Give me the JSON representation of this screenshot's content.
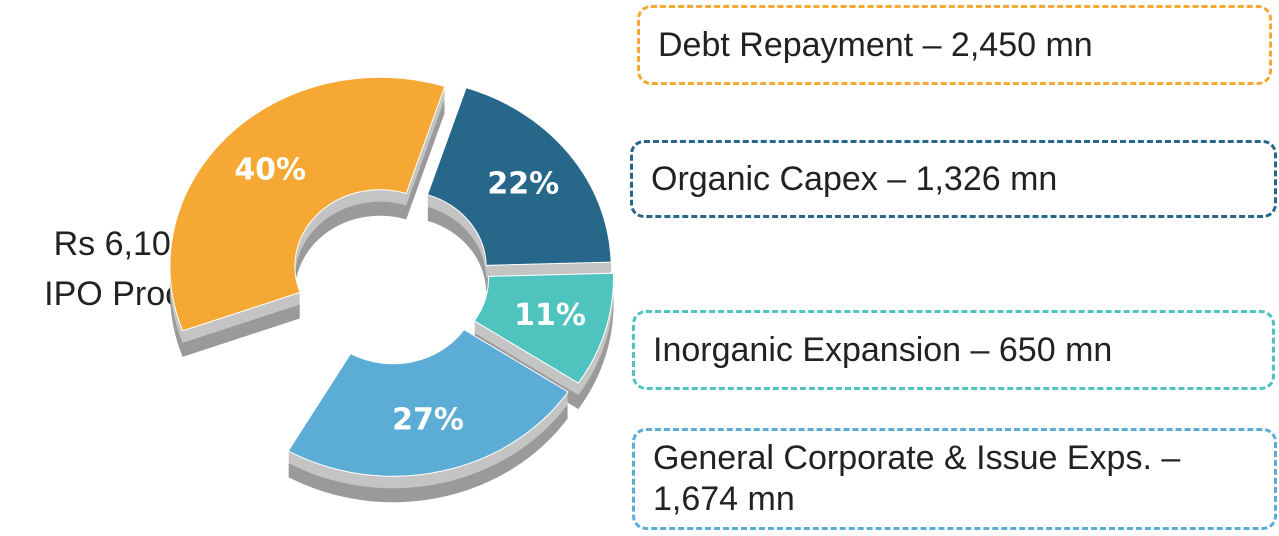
{
  "chart_data": {
    "type": "pie",
    "center_label": [
      "Rs 6,100 mn",
      "IPO Proceeds"
    ],
    "categories": [
      "Debt Repayment – 2,450 mn",
      "Organic Capex – 1,326 mn",
      "Inorganic Expansion – 650 mn",
      "General Corporate & Issue Exps. – 1,674 mn"
    ],
    "values": [
      40,
      22,
      11,
      27
    ],
    "value_labels": [
      "40%",
      "22%",
      "11%",
      "27%"
    ],
    "colors": [
      "#f5a833",
      "#27678a",
      "#4fc3bd",
      "#5badd6"
    ]
  }
}
